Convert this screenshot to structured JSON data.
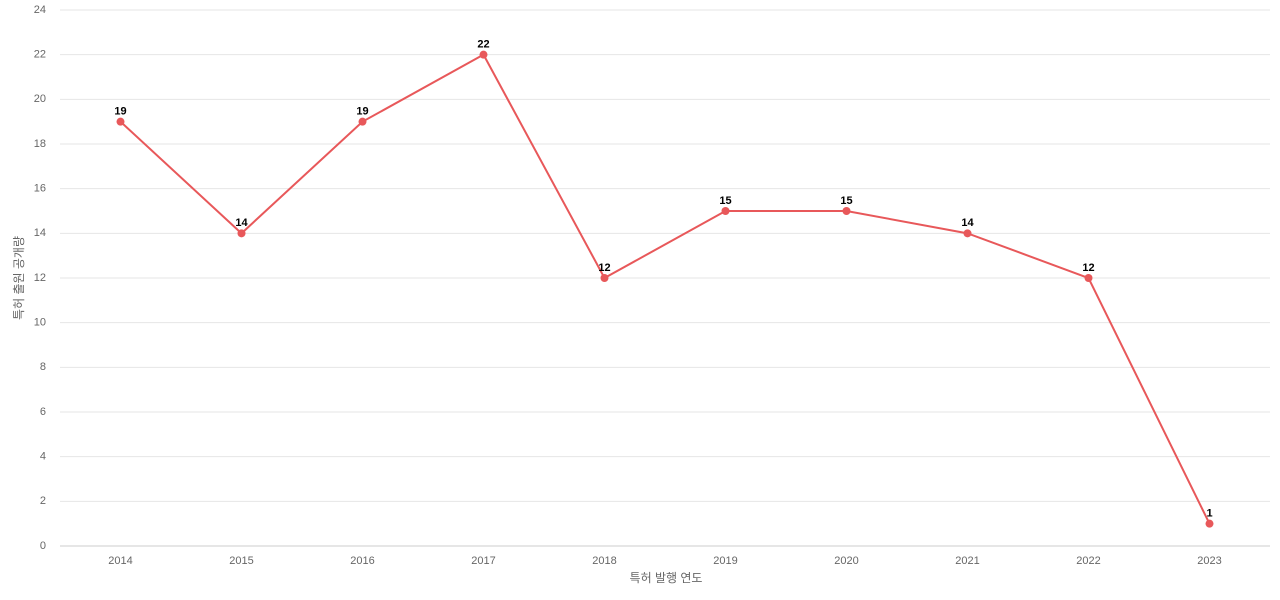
{
  "chart_data": {
    "type": "line",
    "x_label": "특허 발행 연도",
    "y_label": "특허 출원 공개량",
    "categories": [
      "2014",
      "2015",
      "2016",
      "2017",
      "2018",
      "2019",
      "2020",
      "2021",
      "2022",
      "2023"
    ],
    "values": [
      19,
      14,
      19,
      22,
      12,
      15,
      15,
      14,
      12,
      1
    ],
    "color": "#e8585a",
    "ylim": [
      0,
      24
    ],
    "yticks": [
      0,
      2,
      4,
      6,
      8,
      10,
      12,
      14,
      16,
      18,
      20,
      22,
      24
    ],
    "grid": true
  }
}
